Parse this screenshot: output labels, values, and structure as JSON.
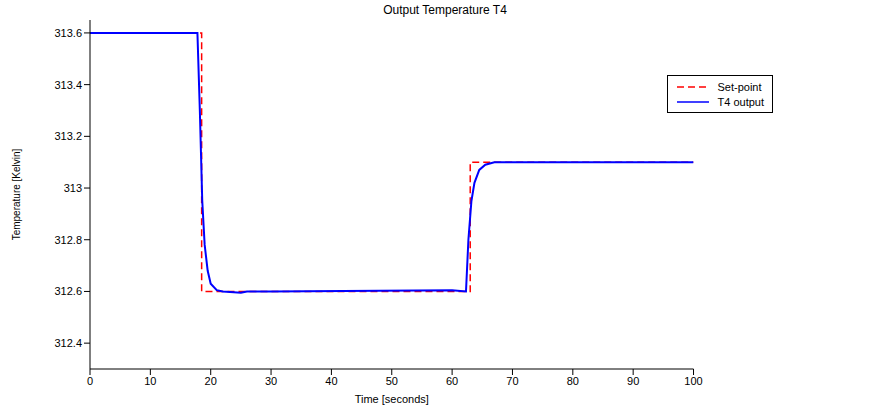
{
  "chart_data": {
    "type": "line",
    "title": "Output Temperature T4",
    "x_label": "Time [seconds]",
    "y_label": "Temperature [Kelvin]",
    "xlim": [
      0,
      100
    ],
    "xticks": [
      0,
      10,
      20,
      30,
      40,
      50,
      60,
      70,
      80,
      90,
      100
    ],
    "ylim": [
      312.3,
      313.65
    ],
    "yticks": [
      312.4,
      312.6,
      312.8,
      313,
      313.2,
      313.4,
      313.6
    ],
    "grid": false,
    "legend": "upper right",
    "series": [
      {
        "name": "Set-point",
        "color": "#ff0000",
        "line_style": "dashed",
        "x": [
          0,
          18.5,
          18.5,
          63,
          63,
          100
        ],
        "values": [
          313.6,
          313.6,
          312.6,
          312.6,
          313.1,
          313.1
        ]
      },
      {
        "name": "T4 output",
        "color": "#0000ff",
        "line_style": "solid",
        "x": [
          0,
          17.8,
          18.2,
          18.6,
          19,
          19.5,
          20,
          21,
          22,
          25,
          26,
          30,
          60,
          62.3,
          62.7,
          63.2,
          63.7,
          64.5,
          65.5,
          67,
          100
        ],
        "values": [
          313.6,
          313.6,
          313.3,
          312.95,
          312.78,
          312.68,
          312.63,
          312.605,
          312.6,
          312.595,
          312.6,
          312.6,
          312.605,
          312.6,
          312.8,
          312.95,
          313.02,
          313.07,
          313.09,
          313.1,
          313.1
        ]
      }
    ]
  }
}
